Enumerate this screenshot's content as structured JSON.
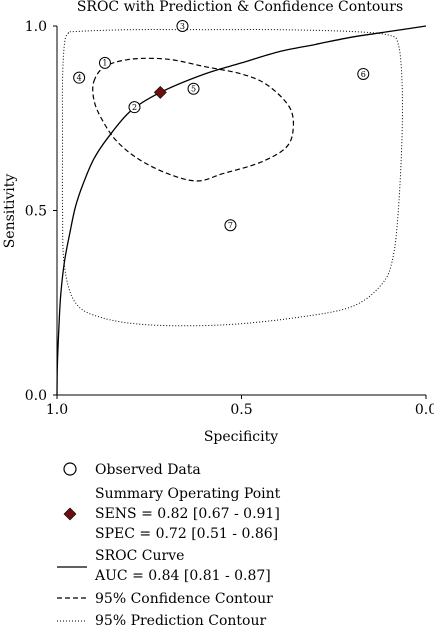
{
  "chart_data": {
    "type": "scatter",
    "title": "SROC with Prediction & Confidence Contours",
    "xlabel": "Specificity",
    "ylabel": "Sensitivity",
    "x_reversed": true,
    "xlim": [
      1.0,
      0.0
    ],
    "ylim": [
      0.0,
      1.0
    ],
    "xticks": [
      "1.0",
      "0.5",
      "0.0"
    ],
    "xtick_values": [
      1.0,
      0.5,
      0.0
    ],
    "yticks": [
      "0.0",
      "0.5",
      "1.0"
    ],
    "ytick_values": [
      0.0,
      0.5,
      1.0
    ],
    "observed_data": [
      {
        "label": "1",
        "specificity": 0.87,
        "sensitivity": 0.9
      },
      {
        "label": "2",
        "specificity": 0.79,
        "sensitivity": 0.78
      },
      {
        "label": "3",
        "specificity": 0.66,
        "sensitivity": 1.0
      },
      {
        "label": "4",
        "specificity": 0.94,
        "sensitivity": 0.86
      },
      {
        "label": "5",
        "specificity": 0.63,
        "sensitivity": 0.83
      },
      {
        "label": "6",
        "specificity": 0.17,
        "sensitivity": 0.87
      },
      {
        "label": "7",
        "specificity": 0.53,
        "sensitivity": 0.46
      }
    ],
    "summary_point": {
      "specificity": 0.72,
      "sensitivity": 0.82
    },
    "sroc_curve": [
      [
        1.0,
        0.0
      ],
      [
        0.999,
        0.08
      ],
      [
        0.995,
        0.18
      ],
      [
        0.99,
        0.27
      ],
      [
        0.98,
        0.36
      ],
      [
        0.965,
        0.44
      ],
      [
        0.95,
        0.51
      ],
      [
        0.93,
        0.57
      ],
      [
        0.9,
        0.64
      ],
      [
        0.86,
        0.7
      ],
      [
        0.8,
        0.77
      ],
      [
        0.72,
        0.82
      ],
      [
        0.6,
        0.87
      ],
      [
        0.5,
        0.9
      ],
      [
        0.4,
        0.93
      ],
      [
        0.3,
        0.95
      ],
      [
        0.2,
        0.97
      ],
      [
        0.1,
        0.985
      ],
      [
        0.0,
        1.0
      ]
    ],
    "confidence_contour": [
      [
        0.9,
        0.85
      ],
      [
        0.87,
        0.89
      ],
      [
        0.8,
        0.91
      ],
      [
        0.7,
        0.91
      ],
      [
        0.6,
        0.89
      ],
      [
        0.5,
        0.87
      ],
      [
        0.43,
        0.84
      ],
      [
        0.37,
        0.78
      ],
      [
        0.36,
        0.72
      ],
      [
        0.38,
        0.67
      ],
      [
        0.45,
        0.63
      ],
      [
        0.55,
        0.6
      ],
      [
        0.62,
        0.58
      ],
      [
        0.7,
        0.6
      ],
      [
        0.78,
        0.64
      ],
      [
        0.84,
        0.69
      ],
      [
        0.88,
        0.75
      ],
      [
        0.9,
        0.8
      ]
    ],
    "prediction_contour": [
      [
        0.97,
        0.98
      ],
      [
        0.95,
        0.985
      ],
      [
        0.8,
        0.99
      ],
      [
        0.6,
        0.99
      ],
      [
        0.4,
        0.99
      ],
      [
        0.2,
        0.985
      ],
      [
        0.1,
        0.975
      ],
      [
        0.075,
        0.95
      ],
      [
        0.065,
        0.85
      ],
      [
        0.065,
        0.7
      ],
      [
        0.075,
        0.5
      ],
      [
        0.09,
        0.37
      ],
      [
        0.12,
        0.3
      ],
      [
        0.2,
        0.24
      ],
      [
        0.35,
        0.21
      ],
      [
        0.55,
        0.19
      ],
      [
        0.75,
        0.19
      ],
      [
        0.88,
        0.21
      ],
      [
        0.95,
        0.25
      ],
      [
        0.98,
        0.35
      ],
      [
        0.985,
        0.5
      ],
      [
        0.985,
        0.7
      ],
      [
        0.985,
        0.85
      ],
      [
        0.98,
        0.95
      ]
    ]
  },
  "legend": {
    "observed_label": "Observed Data",
    "summary_title": "Summary Operating Point",
    "summary_sens": "SENS = 0.82 [0.67 - 0.91]",
    "summary_spec": "SPEC = 0.72 [0.51 - 0.86]",
    "sroc_title": "SROC Curve",
    "sroc_auc": "AUC = 0.84 [0.81 - 0.87]",
    "confidence_label": "95% Confidence Contour",
    "prediction_label": "95% Prediction Contour"
  },
  "colors": {
    "summary_point": "#6b1010",
    "line": "#000000"
  }
}
